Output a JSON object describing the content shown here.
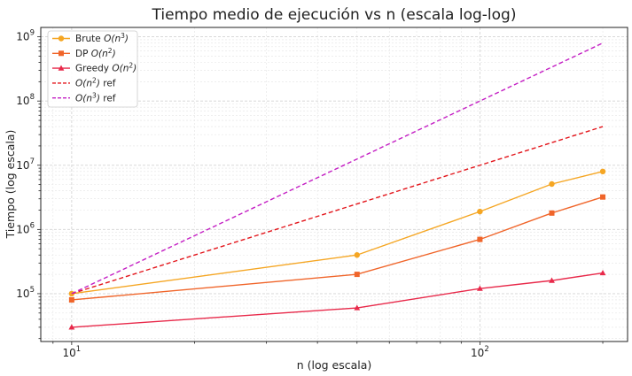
{
  "chart_data": {
    "type": "line",
    "title": "Tiempo medio de ejecución vs n (escala log-log)",
    "xlabel": "n (log escala)",
    "ylabel": "Tiempo (log escala)",
    "xscale": "log",
    "yscale": "log",
    "xlim": [
      8.4,
      230
    ],
    "ylim": [
      18000,
      1400000000
    ],
    "grid": true,
    "legend_position": "top-left",
    "x_ticks": [
      {
        "value": 10,
        "base": "10",
        "exp": "1"
      },
      {
        "value": 100,
        "base": "10",
        "exp": "2"
      }
    ],
    "y_ticks": [
      {
        "value": 100000,
        "base": "10",
        "exp": "5"
      },
      {
        "value": 1000000,
        "base": "10",
        "exp": "6"
      },
      {
        "value": 10000000,
        "base": "10",
        "exp": "7"
      },
      {
        "value": 100000000,
        "base": "10",
        "exp": "8"
      },
      {
        "value": 1000000000,
        "base": "10",
        "exp": "9"
      }
    ],
    "series": [
      {
        "name": "Brute O(n³)",
        "legend": {
          "prefix": "Brute ",
          "math": "O(n",
          "exp": "3",
          "close": ")",
          "suffix": ""
        },
        "color": "#f5a623",
        "dash": "solid",
        "marker": "circle",
        "x": [
          10,
          50,
          100,
          150,
          200
        ],
        "y": [
          100000,
          400000,
          1900000,
          5100000,
          8000000
        ]
      },
      {
        "name": "DP O(n²)",
        "legend": {
          "prefix": "DP ",
          "math": "O(n",
          "exp": "2",
          "close": ")",
          "suffix": ""
        },
        "color": "#f0652a",
        "dash": "solid",
        "marker": "square",
        "x": [
          10,
          50,
          100,
          150,
          200
        ],
        "y": [
          80000,
          200000,
          700000,
          1800000,
          3200000
        ]
      },
      {
        "name": "Greedy O(n²)",
        "legend": {
          "prefix": "Greedy ",
          "math": "O(n",
          "exp": "2",
          "close": ")",
          "suffix": ""
        },
        "color": "#e8294a",
        "dash": "solid",
        "marker": "triangle",
        "x": [
          10,
          50,
          100,
          150,
          200
        ],
        "y": [
          30000,
          60000,
          120000,
          160000,
          210000
        ]
      },
      {
        "name": "O(n²) ref",
        "legend": {
          "prefix": "",
          "math": "O(n",
          "exp": "2",
          "close": ")",
          "suffix": " ref"
        },
        "color": "#e3161c",
        "dash": "dashed",
        "marker": "none",
        "x": [
          10,
          200
        ],
        "y": [
          100000,
          40000000
        ]
      },
      {
        "name": "O(n³) ref",
        "legend": {
          "prefix": "",
          "math": "O(n",
          "exp": "3",
          "close": ")",
          "suffix": " ref"
        },
        "color": "#c41fc4",
        "dash": "dashed",
        "marker": "none",
        "x": [
          10,
          200
        ],
        "y": [
          100000,
          800000000
        ]
      }
    ]
  }
}
